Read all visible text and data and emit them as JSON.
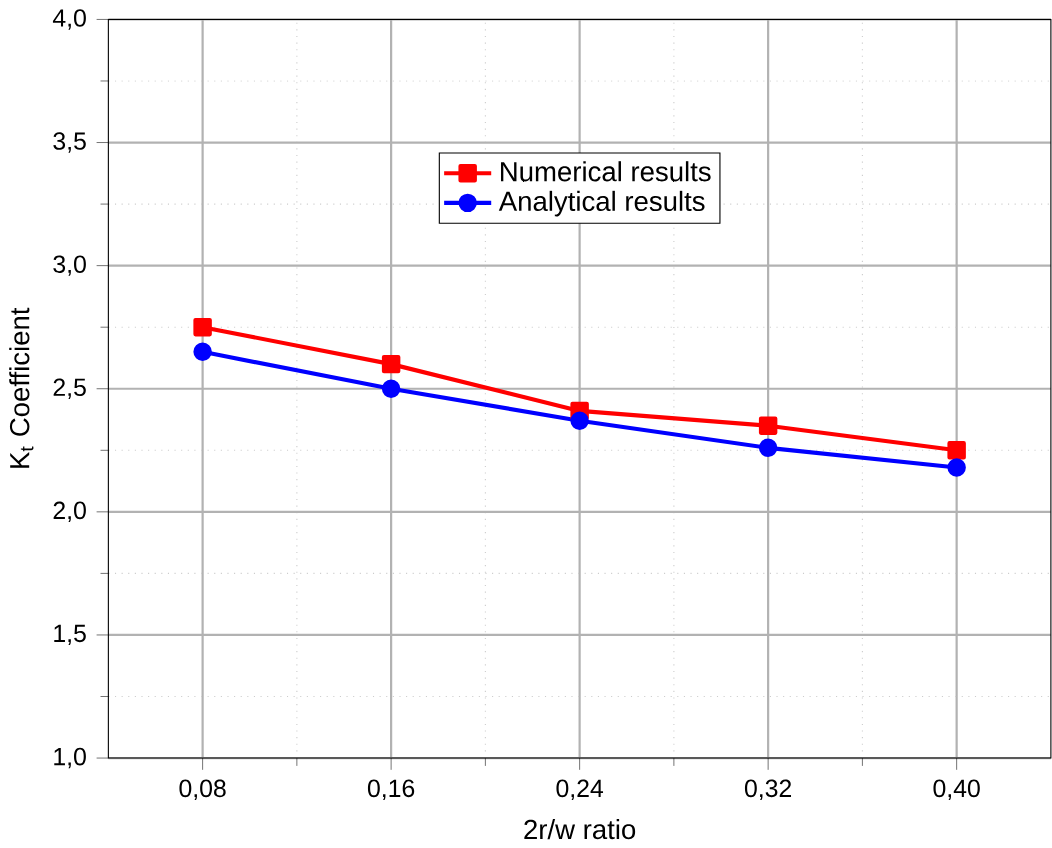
{
  "chart_data": {
    "type": "line",
    "xlabel": "2r/w ratio",
    "ylabel": "K$_{t}$ Coefficient",
    "x": [
      0.08,
      0.16,
      0.24,
      0.32,
      0.4
    ],
    "series": [
      {
        "name": "Numerical results",
        "color": "#ff0000",
        "marker": "square",
        "values": [
          2.75,
          2.6,
          2.41,
          2.35,
          2.25
        ]
      },
      {
        "name": "Analytical results",
        "color": "#0000ff",
        "marker": "circle",
        "values": [
          2.65,
          2.5,
          2.37,
          2.26,
          2.18
        ]
      }
    ],
    "xlim": [
      0.04,
      0.44
    ],
    "xticks": [
      {
        "value": 0.08,
        "label": "0,08"
      },
      {
        "value": 0.16,
        "label": "0,16"
      },
      {
        "value": 0.24,
        "label": "0,24"
      },
      {
        "value": 0.32,
        "label": "0,32"
      },
      {
        "value": 0.4,
        "label": "0,40"
      }
    ],
    "ylim": [
      1.0,
      4.0
    ],
    "yticks": [
      {
        "value": 1.0,
        "label": "1,0"
      },
      {
        "value": 1.5,
        "label": "1,5"
      },
      {
        "value": 2.0,
        "label": "2,0"
      },
      {
        "value": 2.5,
        "label": "2,5"
      },
      {
        "value": 3.0,
        "label": "3,0"
      },
      {
        "value": 3.5,
        "label": "3,5"
      },
      {
        "value": 4.0,
        "label": "4,0"
      }
    ],
    "grid": true,
    "legend": "top",
    "line_style": "solid"
  }
}
